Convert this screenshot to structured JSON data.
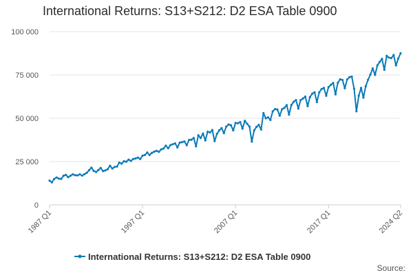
{
  "colors": {
    "series": "#0a7ab8",
    "grid": "#e6e6e6",
    "axis": "#cccccc"
  },
  "source_label": "Source:",
  "chart_data": {
    "type": "line",
    "title": "International Returns: S13+S212: D2 ESA Table 0900",
    "xlabel": "",
    "ylabel": "",
    "ylim": [
      0,
      100000
    ],
    "y_ticks": [
      0,
      25000,
      50000,
      75000,
      100000
    ],
    "y_tick_labels": [
      "0",
      "25 000",
      "50 000",
      "75 000",
      "100 000"
    ],
    "x_tick_labels": [
      "1987 Q1",
      "1997 Q1",
      "2007 Q1",
      "2017 Q1",
      "2024 Q2"
    ],
    "grid": true,
    "legend": "bottom",
    "series": [
      {
        "name": "International Returns: S13+S212: D2 ESA Table 0900",
        "values": [
          14000,
          13000,
          15000,
          15800,
          15200,
          15000,
          16800,
          17300,
          16000,
          16800,
          17600,
          17100,
          17000,
          17600,
          16900,
          17700,
          18500,
          20000,
          21500,
          19600,
          19000,
          20100,
          21300,
          19500,
          19900,
          20600,
          22600,
          21000,
          21900,
          22100,
          24400,
          23800,
          25200,
          24900,
          26100,
          25400,
          26500,
          26800,
          27300,
          26500,
          28400,
          28800,
          30200,
          28800,
          30000,
          30700,
          31200,
          30600,
          32000,
          32500,
          34200,
          32700,
          34500,
          35000,
          35500,
          33200,
          35900,
          36200,
          36600,
          34400,
          37500,
          37600,
          38600,
          33800,
          40200,
          38600,
          41200,
          37200,
          42200,
          41800,
          43200,
          36800,
          41000,
          43000,
          44300,
          41400,
          45200,
          46400,
          46000,
          43000,
          47300,
          47100,
          47800,
          44000,
          48500,
          46800,
          45200,
          36500,
          43000,
          45000,
          46200,
          43500,
          53000,
          50000,
          50500,
          49000,
          54000,
          55300,
          55000,
          51500,
          55200,
          56000,
          57600,
          52100,
          57600,
          59500,
          60500,
          55600,
          60500,
          61400,
          62500,
          57000,
          62200,
          64200,
          65000,
          59300,
          65000,
          66800,
          67500,
          63000,
          68000,
          69300,
          70400,
          63800,
          70500,
          72500,
          72100,
          67300,
          72400,
          73700,
          74000,
          67000,
          54000,
          63000,
          67500,
          61900,
          68500,
          72200,
          75200,
          78800,
          75000,
          80500,
          82500,
          84300,
          78000,
          86000,
          85000,
          84700,
          86500,
          80500,
          84500,
          87500
        ]
      }
    ]
  }
}
